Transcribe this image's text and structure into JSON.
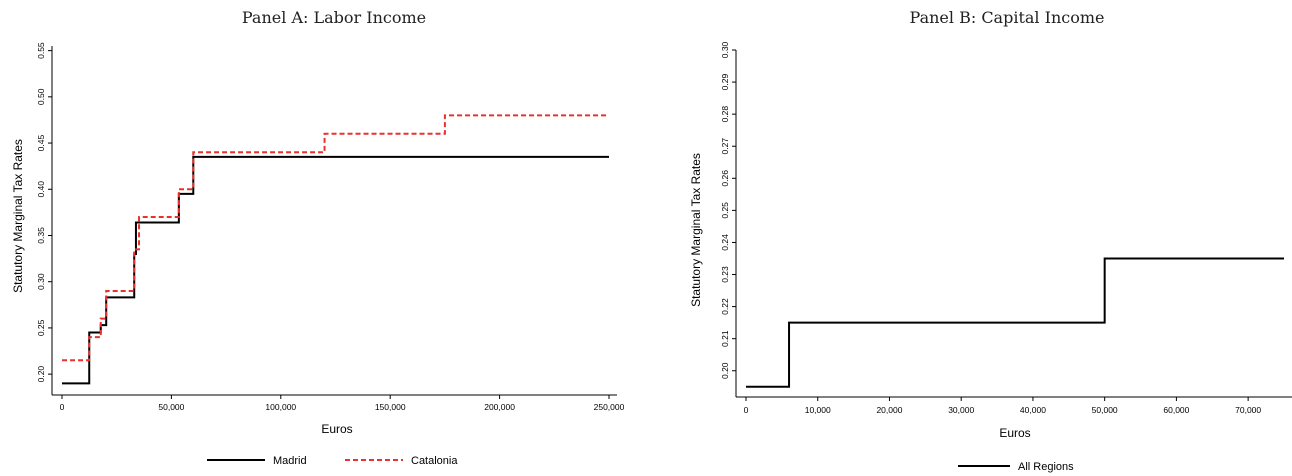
{
  "chart_data": [
    {
      "type": "line",
      "step": true,
      "title": "Panel A: Labor Income",
      "xlabel": "Euros",
      "ylabel": "Statutory Marginal Tax Rates",
      "xlim": [
        0,
        250000
      ],
      "ylim": [
        0.185,
        0.555
      ],
      "xticks": [
        0,
        50000,
        100000,
        150000,
        200000,
        250000
      ],
      "xtick_labels": [
        "0",
        "50,000",
        "100,000",
        "150,000",
        "200,000",
        "250,000"
      ],
      "yticks": [
        0.2,
        0.25,
        0.3,
        0.35,
        0.4,
        0.45,
        0.5,
        0.55
      ],
      "ytick_labels": [
        "0.20",
        "0.25",
        "0.30",
        "0.35",
        "0.40",
        "0.45",
        "0.50",
        "0.55"
      ],
      "grid": false,
      "legend_position": "bottom",
      "series": [
        {
          "name": "Madrid",
          "color": "#000000",
          "dash": "solid",
          "x": [
            0,
            12450,
            17707,
            20200,
            33007,
            33800,
            53407,
            60000,
            250000
          ],
          "y": [
            0.19,
            0.245,
            0.253,
            0.283,
            0.33,
            0.364,
            0.395,
            0.435,
            0.435
          ]
        },
        {
          "name": "Catalonia",
          "color": "#e8322e",
          "dash": "dashed",
          "x": [
            0,
            12450,
            17707,
            20200,
            33007,
            35200,
            53407,
            60000,
            120000,
            175000,
            250000
          ],
          "y": [
            0.215,
            0.24,
            0.26,
            0.29,
            0.335,
            0.37,
            0.4,
            0.44,
            0.46,
            0.48,
            0.48
          ]
        }
      ]
    },
    {
      "type": "line",
      "step": true,
      "title": "Panel B: Capital Income",
      "xlabel": "Euros",
      "ylabel": "Statutory Marginal Tax Rates",
      "xlim": [
        0,
        75000
      ],
      "ylim": [
        0.194,
        0.3
      ],
      "xticks": [
        0,
        10000,
        20000,
        30000,
        40000,
        50000,
        60000,
        70000
      ],
      "xtick_labels": [
        "0",
        "10,000",
        "20,000",
        "30,000",
        "40,000",
        "50,000",
        "60,000",
        "70,000"
      ],
      "yticks": [
        0.2,
        0.21,
        0.22,
        0.23,
        0.24,
        0.25,
        0.26,
        0.27,
        0.28,
        0.29,
        0.3
      ],
      "ytick_labels": [
        "0.20",
        "0.21",
        "0.22",
        "0.23",
        "0.24",
        "0.25",
        "0.26",
        "0.27",
        "0.28",
        "0.29",
        "0.30"
      ],
      "grid": false,
      "legend_position": "bottom",
      "series": [
        {
          "name": "All Regions",
          "color": "#000000",
          "dash": "solid",
          "x": [
            0,
            6000,
            50000,
            75000
          ],
          "y": [
            0.195,
            0.215,
            0.235,
            0.235
          ]
        }
      ]
    }
  ]
}
